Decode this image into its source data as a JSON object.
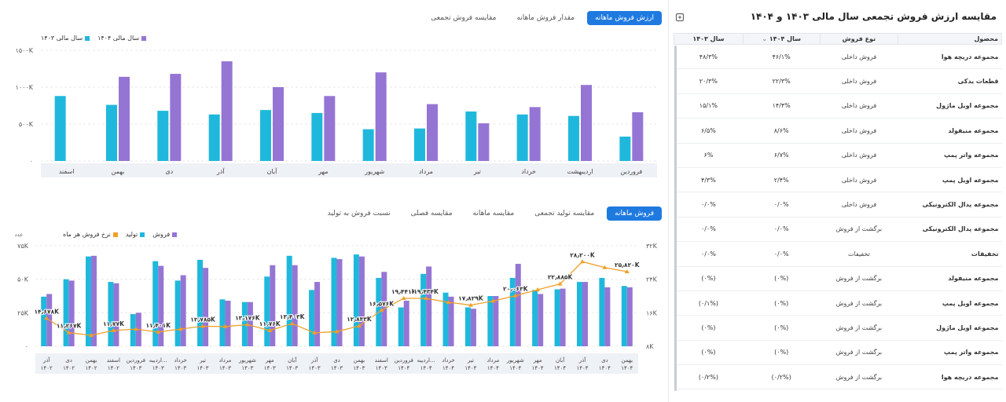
{
  "top_tabs": [
    "ارزش فروش ماهانه",
    "مقدار فروش ماهانه",
    "مقایسه فروش تجمعی"
  ],
  "bottom_tabs": [
    "فروش ماهانه",
    "مقایسه تولید تجمعی",
    "مقایسه ماهانه",
    "مقایسه فصلی",
    "نسبت فروش به تولید"
  ],
  "colors": {
    "cyan": "#1fb8dc",
    "purple": "#9575d4",
    "orange": "#f0a028",
    "accent": "#1f7ae0"
  },
  "chart_data": [
    {
      "type": "bar",
      "categories": [
        "فروردین",
        "اردیبهشت",
        "خرداد",
        "تیر",
        "مرداد",
        "شهریور",
        "مهر",
        "آبان",
        "آذر",
        "دی",
        "بهمن",
        "اسفند"
      ],
      "series": [
        {
          "name": "سال مالی ۱۴۰۳",
          "values": [
            330,
            610,
            630,
            670,
            440,
            430,
            650,
            690,
            630,
            680,
            760,
            880
          ]
        },
        {
          "name": "سال مالی ۱۴۰۴",
          "values": [
            660,
            1030,
            730,
            510,
            770,
            1200,
            880,
            1000,
            1350,
            1180,
            1140,
            null
          ]
        }
      ],
      "yticks": [
        "۰",
        "۵۰۰K",
        "۱۰۰۰K",
        "۱۵۰۰K"
      ],
      "ylim": [
        0,
        1500
      ],
      "legend_position": "top-left"
    },
    {
      "type": "bar",
      "categories": [
        "آذر ۱۴۰۲",
        "دی ۱۴۰۲",
        "بهمن ۱۴۰۲",
        "اسفند ۱۴۰۲",
        "فروردین ۱۴۰۳",
        "اردیبه... ۱۴۰۳",
        "خرداد ۱۴۰۳",
        "تیر ۱۴۰۳",
        "مرداد ۱۴۰۳",
        "شهریور ۱۴۰۳",
        "مهر ۱۴۰۳",
        "آبان ۱۴۰۳",
        "آذر ۱۴۰۳",
        "دی ۱۴۰۳",
        "بهمن ۱۴۰۳",
        "اسفند ۱۴۰۳",
        "فروردین ۱۴۰۴",
        "اردیبه... ۱۴۰۴",
        "خرداد ۱۴۰۴",
        "تیر ۱۴۰۴",
        "مرداد ۱۴۰۴",
        "شهریور ۱۴۰۴",
        "مهر ۱۴۰۴",
        "آبان ۱۴۰۴",
        "آذر ۱۴۰۴",
        "دی ۱۴۰۴",
        "بهمن ۱۴۰۴"
      ],
      "series": [
        {
          "name": "تولید",
          "values": [
            370,
            500,
            670,
            480,
            240,
            635,
            490,
            645,
            350,
            330,
            520,
            675,
            420,
            660,
            685,
            510,
            290,
            540,
            400,
            290,
            375,
            510,
            420,
            425,
            480,
            510,
            450
          ]
        },
        {
          "name": "فروش",
          "values": [
            390,
            490,
            675,
            470,
            250,
            600,
            530,
            585,
            340,
            330,
            605,
            605,
            480,
            650,
            670,
            555,
            340,
            595,
            370,
            280,
            375,
            615,
            390,
            430,
            480,
            440,
            440
          ]
        },
        {
          "name": "نرخ فروش هر ماه",
          "values": [
            14.678,
            11.267,
            10.6,
            11.77,
            12.1,
            11.401,
            12.1,
            12.785,
            12.7,
            13.176,
            11.76,
            13.403,
            11.2,
            11.5,
            12.843,
            16.576,
            19.441,
            19.434,
            18.5,
            17.829,
            18.8,
            20.063,
            21.5,
            22.885,
            28.2,
            26.8,
            25.82
          ]
        }
      ],
      "point_labels": [
        {
          "i": 0,
          "text": "۱۴٫۶۷۸K"
        },
        {
          "i": 1,
          "text": "۱۱٫۲۶۷K"
        },
        {
          "i": 3,
          "text": "۱۱٫۷۷K"
        },
        {
          "i": 5,
          "text": "۱۱٫۴۰۱K"
        },
        {
          "i": 7,
          "text": "۱۲٫۷۸۵K"
        },
        {
          "i": 9,
          "text": "۱۳٫۱۷۶K"
        },
        {
          "i": 10,
          "text": "۱۱٫۷۶K"
        },
        {
          "i": 11,
          "text": "۱۳٫۴۰۳K"
        },
        {
          "i": 14,
          "text": "۱۲٫۸۴۳K"
        },
        {
          "i": 15,
          "text": "۱۶٫۵۷۶K"
        },
        {
          "i": 16,
          "text": "۱۹٫۴۴۱K"
        },
        {
          "i": 17,
          "text": "۱۹٫۴۳۴K"
        },
        {
          "i": 19,
          "text": "۱۷٫۸۲۹K"
        },
        {
          "i": 21,
          "text": "۲۰٫۰۶۳K"
        },
        {
          "i": 23,
          "text": "۲۲٫۸۸۵K"
        },
        {
          "i": 24,
          "text": "۲۸٫۲۰۰K"
        },
        {
          "i": 26,
          "text": "۲۵٫۸۲۰K"
        }
      ],
      "y_left_ticks": [
        "۰",
        "۲۵K",
        "۵۰K",
        "۷۵K"
      ],
      "y_left_label": "عدد",
      "ylim_left": [
        0,
        75
      ],
      "y_right_ticks": [
        "۸K",
        "۱۶K",
        "۲۴K",
        "۳۲K"
      ],
      "ylim_right": [
        8,
        32
      ],
      "legend_position": "top-left"
    }
  ],
  "table": {
    "title": "مقایسه ارزش فروش تجمعی سال مالی ۱۴۰۳ و ۱۴۰۴",
    "columns": [
      "محصول",
      "نوع فروش",
      "سال ۱۴۰۴",
      "سال ۱۴۰۳"
    ],
    "rows": [
      [
        "مجموعه دریچه هوا",
        "فروش داخلی",
        "۴۶/۱%",
        "۴۸/۳%"
      ],
      [
        "قطعات یدکی",
        "فروش داخلی",
        "۲۲/۳%",
        "۲۰/۳%"
      ],
      [
        "مجموعه اویل ماژول",
        "فروش داخلی",
        "۱۴/۴%",
        "۱۵/۱%"
      ],
      [
        "مجموعه منیفولد",
        "فروش داخلی",
        "۸/۶%",
        "۶/۵%"
      ],
      [
        "مجموعه واتر پمپ",
        "فروش داخلی",
        "۶/۷%",
        "۶%"
      ],
      [
        "مجموعه اویل پمپ",
        "فروش داخلی",
        "۲/۴%",
        "۴/۳%"
      ],
      [
        "مجموعه پدال الکترونیکی",
        "فروش داخلی",
        "۰/۰%",
        "۰/۰%"
      ],
      [
        "مجموعه پدال الکترونیکی",
        "برگشت از فروش",
        "۰/۰%",
        "۰/۰%"
      ],
      [
        "تخفیفات",
        "تخفیفات",
        "۰/۰%",
        "۰/۰%"
      ],
      [
        "مجموعه منیفولد",
        "برگشت از فروش",
        "(۰%)",
        "(۰%)"
      ],
      [
        "مجموعه اویل پمپ",
        "برگشت از فروش",
        "(۰%)",
        "(۰/۱%)"
      ],
      [
        "مجموعه اویل ماژول",
        "برگشت از فروش",
        "(۰%)",
        "(۰%)"
      ],
      [
        "مجموعه واتر پمپ",
        "برگشت از فروش",
        "(۰%)",
        "(۰%)"
      ],
      [
        "مجموعه دریچه هوا",
        "برگشت از فروش",
        "(۰/۲%)",
        "(۰/۲%)"
      ]
    ]
  }
}
